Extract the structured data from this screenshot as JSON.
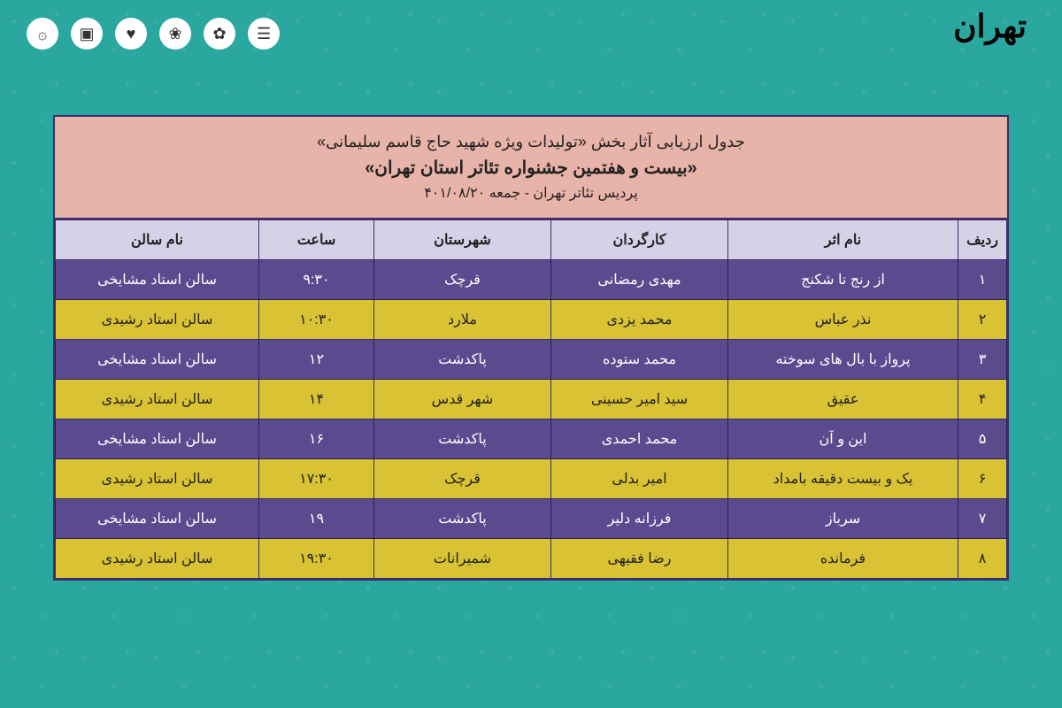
{
  "branding": {
    "festival_name_1": "تهران",
    "festival_name_2": "بیست‌وهفتمین",
    "festival_name_3": "جشنواره"
  },
  "titleBlock": {
    "line1": "جدول ارزیابی آثار بخش «تولیدات ویژه شهید حاج قاسم سلیمانی»",
    "line2": "«بیست و هفتمین جشنواره تئاتر استان تهران»",
    "line3": "پردیس تئاتر تهران - جمعه ۴۰۱/۰۸/۲۰"
  },
  "columns": {
    "num": "ردیف",
    "title": "نام اثر",
    "director": "کارگردان",
    "city": "شهرستان",
    "time": "ساعت",
    "hall": "نام سالن"
  },
  "rows": [
    {
      "num": "۱",
      "title": "از رنج تا شکنج",
      "director": "مهدی رمضانی",
      "city": "قرچک",
      "time": "۹:۳۰",
      "hall": "سالن استاد مشایخی"
    },
    {
      "num": "۲",
      "title": "نذر عباس",
      "director": "محمد یزدی",
      "city": "ملارد",
      "time": "۱۰:۳۰",
      "hall": "سالن استاد رشیدی"
    },
    {
      "num": "۳",
      "title": "پرواز با بال های سوخته",
      "director": "محمد ستوده",
      "city": "پاکدشت",
      "time": "۱۲",
      "hall": "سالن استاد مشایخی"
    },
    {
      "num": "۴",
      "title": "عقیق",
      "director": "سید امیر حسینی",
      "city": "شهر قدس",
      "time": "۱۴",
      "hall": "سالن استاد رشیدی"
    },
    {
      "num": "۵",
      "title": "این و آن",
      "director": "محمد احمدی",
      "city": "پاکدشت",
      "time": "۱۶",
      "hall": "سالن استاد مشایخی"
    },
    {
      "num": "۶",
      "title": "یک و بیست دقیقه بامداد",
      "director": "امیر بدلی",
      "city": "قرچک",
      "time": "۱۷:۳۰",
      "hall": "سالن استاد رشیدی"
    },
    {
      "num": "۷",
      "title": "سرباز",
      "director": "فرزانه دلیر",
      "city": "پاکدشت",
      "time": "۱۹",
      "hall": "سالن استاد مشایخی"
    },
    {
      "num": "۸",
      "title": "فرمانده",
      "director": "رضا فقیهی",
      "city": "شمیرانات",
      "time": "۱۹:۳۰",
      "hall": "سالن استاد رشیدی"
    }
  ],
  "styling": {
    "background": "#2aa8a0",
    "title_bg": "#e8b3a8",
    "header_bg": "#d7d1e8",
    "row_purple": "#5a4b8e",
    "row_yellow": "#d9c233",
    "border": "#3a2f6b",
    "text_light": "#ffffff",
    "text_dark": "#222222",
    "title_fontsize": 18,
    "subtitle_fontsize": 20,
    "header_fontsize": 16,
    "cell_fontsize": 16,
    "column_widths": {
      "num": 55,
      "title": 260,
      "director": 200,
      "city": 200,
      "time": 130,
      "hall": 230
    }
  }
}
